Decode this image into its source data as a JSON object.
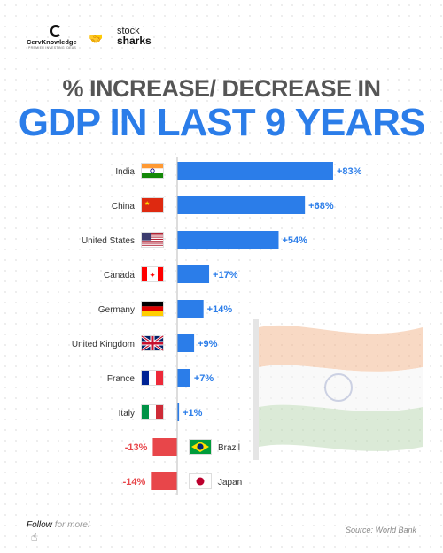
{
  "brands": {
    "left_name": "CervKnowledge",
    "left_tag": "PREMIER INVESTING IDEAS",
    "right_line1": "stock",
    "right_line2": "sharks"
  },
  "title_line1": "% INCREASE/ DECREASE IN",
  "title_line2": "GDP IN LAST 9 YEARS",
  "footer": {
    "follow": "Follow",
    "more": "for more!",
    "source": "Source: World Bank"
  },
  "colors": {
    "positive": "#2b7de9",
    "negative": "#e8464a",
    "title_gray": "#555555",
    "label": "#333333"
  },
  "chart_data": {
    "type": "bar",
    "orientation": "horizontal",
    "categories": [
      "India",
      "China",
      "United States",
      "Canada",
      "Germany",
      "United Kingdom",
      "France",
      "Italy",
      "Brazil",
      "Japan"
    ],
    "values": [
      83,
      68,
      54,
      17,
      14,
      9,
      7,
      1,
      -13,
      -14
    ],
    "value_labels": [
      "+83%",
      "+68%",
      "+54%",
      "+17%",
      "+14%",
      "+9%",
      "+7%",
      "+1%",
      "-13%",
      "-14%"
    ],
    "flags": [
      "india-flag",
      "china-flag",
      "usa-flag",
      "canada-flag",
      "germany-flag",
      "uk-flag",
      "france-flag",
      "italy-flag",
      "brazil-flag",
      "japan-flag"
    ],
    "title": "GDP IN LAST 9 YEARS",
    "unit": "%"
  }
}
